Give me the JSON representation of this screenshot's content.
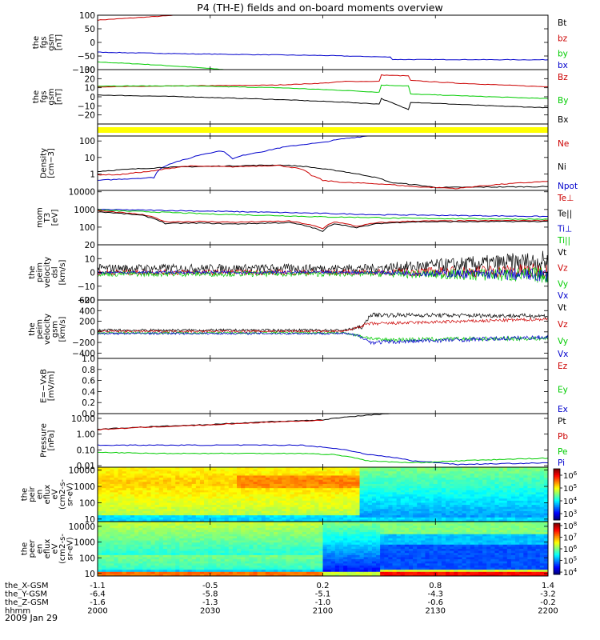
{
  "title": "P4 (TH-E) fields and on-board moments overview",
  "date": "2009 Jan 29",
  "colors": {
    "black": "#000000",
    "red": "#cc0000",
    "green": "#00cc00",
    "blue": "#0000cc",
    "yellow": "#ffff00"
  },
  "xaxis": {
    "tick_positions": [
      2000,
      2030,
      2100,
      2130,
      2200
    ],
    "rows": [
      {
        "label": "the_X-GSM",
        "values": [
          "-1.1",
          "-0.5",
          "0.2",
          "0.8",
          "1.4"
        ]
      },
      {
        "label": "the_Y-GSM",
        "values": [
          "-6.4",
          "-5.8",
          "-5.1",
          "-4.3",
          "-3.2"
        ]
      },
      {
        "label": "the_Z-GSM",
        "values": [
          "-1.6",
          "-1.3",
          "-1.0",
          "-0.6",
          "-0.2"
        ]
      },
      {
        "label": "hhmm",
        "values": [
          "2000",
          "2030",
          "2100",
          "2130",
          "2200"
        ]
      }
    ]
  },
  "chart_data": [
    {
      "id": "fgs-gsm",
      "type": "line",
      "ylabel": [
        "the",
        "fgs",
        "gsm",
        "[nT]"
      ],
      "ylim": [
        -100,
        100
      ],
      "yticks": [
        100,
        50,
        0,
        -50,
        -100
      ],
      "yticklabels": [
        "100",
        "50",
        "0",
        "−50",
        "−100"
      ],
      "legend": [
        {
          "name": "Bt",
          "color": "#000000"
        },
        {
          "name": "bz",
          "color": "#cc0000"
        },
        {
          "name": "by",
          "color": "#00cc00"
        },
        {
          "name": "bx",
          "color": "#0000cc"
        }
      ],
      "series": [
        {
          "name": "bz",
          "color": "#cc0000",
          "x": [
            0,
            35
          ],
          "y": [
            82,
            100
          ]
        },
        {
          "name": "by",
          "color": "#00cc00",
          "x": [
            0,
            20,
            40,
            60
          ],
          "y": [
            -72,
            -80,
            -90,
            -102
          ]
        },
        {
          "name": "bx",
          "color": "#0000cc",
          "x": [
            0,
            40,
            100,
            130,
            131,
            200
          ],
          "y": [
            -36,
            -42,
            -48,
            -54,
            -63,
            -64
          ]
        }
      ]
    },
    {
      "id": "fgs-gsm-zoom",
      "type": "line",
      "ylabel": [
        "the",
        "fgs",
        "gsm",
        "[nT]"
      ],
      "ylim": [
        -30,
        30
      ],
      "yticks": [
        30,
        20,
        10,
        0,
        -10,
        -20
      ],
      "yticklabels": [
        "30",
        "20",
        "10",
        "0",
        "−10",
        "−20"
      ],
      "legend": [
        {
          "name": "Bz",
          "color": "#cc0000"
        },
        {
          "name": "By",
          "color": "#00cc00"
        },
        {
          "name": "Bx",
          "color": "#000000"
        }
      ],
      "series": [
        {
          "name": "Bz",
          "color": "#cc0000",
          "x": [
            0,
            40,
            80,
            100,
            110,
            125,
            126,
            138,
            139,
            160,
            200
          ],
          "y": [
            11,
            12,
            13,
            15,
            17,
            17,
            24,
            23,
            18,
            15,
            11
          ]
        },
        {
          "name": "By",
          "color": "#00cc00",
          "x": [
            0,
            40,
            80,
            110,
            125,
            126,
            138,
            139,
            175,
            200
          ],
          "y": [
            12,
            12,
            10,
            7,
            5,
            13,
            12,
            3,
            0,
            -2
          ]
        },
        {
          "name": "Bx",
          "color": "#000000",
          "x": [
            0,
            40,
            80,
            110,
            125,
            126,
            138,
            139,
            175,
            200
          ],
          "y": [
            2,
            0,
            -3,
            -6,
            -8,
            -2,
            -14,
            -6,
            -10,
            -12
          ]
        }
      ]
    },
    {
      "id": "quality-flag",
      "type": "area",
      "series": [
        {
          "name": "flag",
          "color": "#ffff00",
          "x": [
            0,
            200
          ],
          "y": [
            1,
            1
          ]
        }
      ]
    },
    {
      "id": "density",
      "type": "line",
      "yscale": "log",
      "ylabel": [
        "Density",
        "[cm−3]"
      ],
      "ylim": [
        0.1,
        200
      ],
      "yticks": [
        100,
        10,
        1
      ],
      "yticklabels": [
        "100",
        "10",
        "1"
      ],
      "legend": [
        {
          "name": "Ne",
          "color": "#cc0000"
        },
        {
          "name": "Ni",
          "color": "#000000"
        },
        {
          "name": "Npot",
          "color": "#0000cc"
        }
      ],
      "series": [
        {
          "name": "Npot",
          "color": "#0000cc",
          "x": [
            0,
            25,
            40,
            55,
            60,
            75,
            100,
            120
          ],
          "y": [
            0.4,
            0.6,
            8,
            25,
            8,
            25,
            80,
            200
          ]
        },
        {
          "name": "Ni",
          "color": "#000000",
          "x": [
            0,
            30,
            80,
            90,
            100,
            115,
            130,
            150,
            200
          ],
          "y": [
            1.4,
            2.5,
            3.5,
            3.0,
            2.0,
            1.0,
            0.3,
            0.15,
            0.17
          ]
        },
        {
          "name": "Ne",
          "color": "#cc0000",
          "x": [
            0,
            10,
            25,
            40,
            60,
            80,
            90,
            95,
            100,
            110,
            125,
            140,
            160,
            200
          ],
          "y": [
            0.9,
            0.9,
            1.5,
            3.0,
            2.7,
            3.3,
            2.0,
            0.8,
            0.4,
            0.3,
            0.25,
            0.17,
            0.13,
            0.35
          ]
        }
      ]
    },
    {
      "id": "temperature",
      "type": "line",
      "yscale": "log",
      "ylabel": [
        "mom",
        "T3",
        "[eV]"
      ],
      "ylim": [
        10,
        12000
      ],
      "yticks": [
        10000,
        1000,
        100
      ],
      "yticklabels": [
        "10000",
        "1000",
        "100"
      ],
      "legend": [
        {
          "name": "Te⊥",
          "color": "#cc0000"
        },
        {
          "name": "Te||",
          "color": "#000000"
        },
        {
          "name": "Ti⊥",
          "color": "#0000cc"
        },
        {
          "name": "Ti||",
          "color": "#00cc00"
        }
      ],
      "series": [
        {
          "name": "Ti⊥",
          "color": "#0000cc",
          "x": [
            0,
            50,
            100,
            125,
            130,
            200
          ],
          "y": [
            1000,
            800,
            600,
            500,
            500,
            400
          ]
        },
        {
          "name": "Ti||",
          "color": "#00cc00",
          "x": [
            0,
            50,
            100,
            125,
            130,
            200
          ],
          "y": [
            900,
            550,
            380,
            350,
            320,
            280
          ]
        },
        {
          "name": "Te⊥",
          "color": "#cc0000",
          "x": [
            0,
            20,
            30,
            45,
            60,
            85,
            100,
            105,
            115,
            125,
            140,
            200
          ],
          "y": [
            850,
            500,
            200,
            210,
            190,
            220,
            80,
            200,
            110,
            180,
            220,
            240
          ]
        },
        {
          "name": "Te||",
          "color": "#000000",
          "x": [
            0,
            20,
            30,
            45,
            60,
            85,
            100,
            105,
            115,
            125,
            140,
            200
          ],
          "y": [
            750,
            450,
            160,
            170,
            150,
            180,
            55,
            160,
            90,
            160,
            200,
            210
          ]
        }
      ]
    },
    {
      "id": "velocity-dsl",
      "type": "line",
      "ylabel": [
        "the",
        "peim",
        "velocity",
        "dsl",
        "[km/s]"
      ],
      "ylim": [
        -20,
        20
      ],
      "yticks": [
        20,
        10,
        0,
        -10,
        -20
      ],
      "yticklabels": [
        "20",
        "10",
        "0",
        "−10",
        "−20"
      ],
      "legend": [
        {
          "name": "Vt",
          "color": "#000000"
        },
        {
          "name": "Vz",
          "color": "#cc0000"
        },
        {
          "name": "Vy",
          "color": "#00cc00"
        },
        {
          "name": "Vx",
          "color": "#0000cc"
        }
      ],
      "series": [
        {
          "name": "Vt",
          "color": "#000000",
          "x": [
            0,
            120,
            200
          ],
          "y": [
            3,
            3,
            8
          ],
          "noise": [
            3,
            3,
            8
          ]
        },
        {
          "name": "Vz",
          "color": "#cc0000",
          "x": [
            0,
            120,
            200
          ],
          "y": [
            0,
            0,
            1
          ],
          "noise": [
            2,
            2,
            6
          ]
        },
        {
          "name": "Vy",
          "color": "#00cc00",
          "x": [
            0,
            120,
            200
          ],
          "y": [
            -1,
            -1,
            -2
          ],
          "noise": [
            2,
            2,
            6
          ]
        },
        {
          "name": "Vx",
          "color": "#0000cc",
          "x": [
            0,
            120,
            200
          ],
          "y": [
            0,
            0,
            -2
          ],
          "noise": [
            1,
            1,
            5
          ]
        }
      ]
    },
    {
      "id": "velocity-gsm",
      "type": "line",
      "ylabel": [
        "the",
        "peim",
        "velocity",
        "gsm",
        "[km/s]"
      ],
      "ylim": [
        -500,
        600
      ],
      "yticks": [
        600,
        400,
        200,
        0,
        -200,
        -400
      ],
      "yticklabels": [
        "600",
        "400",
        "200",
        "0",
        "−200",
        "−400"
      ],
      "legend": [
        {
          "name": "Vt",
          "color": "#000000"
        },
        {
          "name": "Vz",
          "color": "#cc0000"
        },
        {
          "name": "Vy",
          "color": "#00cc00"
        },
        {
          "name": "Vx",
          "color": "#0000cc"
        }
      ],
      "series": [
        {
          "name": "Vt",
          "color": "#000000",
          "x": [
            0,
            110,
            118,
            121,
            200
          ],
          "y": [
            30,
            30,
            100,
            320,
            300
          ],
          "noise": [
            25,
            25,
            40,
            40,
            40
          ]
        },
        {
          "name": "Vz",
          "color": "#cc0000",
          "x": [
            0,
            110,
            120,
            200
          ],
          "y": [
            10,
            10,
            150,
            240
          ],
          "noise": [
            20,
            20,
            30,
            30
          ]
        },
        {
          "name": "Vy",
          "color": "#00cc00",
          "x": [
            0,
            110,
            125,
            200
          ],
          "y": [
            -20,
            -20,
            -150,
            -120
          ],
          "noise": [
            20,
            20,
            40,
            40
          ]
        },
        {
          "name": "Vx",
          "color": "#0000cc",
          "x": [
            0,
            110,
            118,
            121,
            200
          ],
          "y": [
            -30,
            -30,
            -100,
            -200,
            -100
          ],
          "noise": [
            20,
            20,
            40,
            40,
            40
          ]
        }
      ]
    },
    {
      "id": "efield",
      "type": "line",
      "ylabel": [
        "E=−VxB",
        "[mV/m]"
      ],
      "ylim": [
        0,
        1
      ],
      "yticks": [
        1.0,
        0.8,
        0.6,
        0.4,
        0.2,
        0.0
      ],
      "yticklabels": [
        "1.0",
        "0.8",
        "0.6",
        "0.4",
        "0.2",
        "0.0"
      ],
      "legend": [
        {
          "name": "Ez",
          "color": "#cc0000"
        },
        {
          "name": "Ey",
          "color": "#00cc00"
        },
        {
          "name": "Ex",
          "color": "#0000cc"
        }
      ],
      "series": []
    },
    {
      "id": "pressure",
      "type": "line",
      "yscale": "log",
      "ylabel": [
        "Pressure",
        "[nPa]"
      ],
      "ylim": [
        0.008,
        20
      ],
      "yticks": [
        10,
        1,
        0.1,
        0.01
      ],
      "yticklabels": [
        "10.00",
        "1.00",
        "0.10",
        "0.01"
      ],
      "legend": [
        {
          "name": "Pt",
          "color": "#000000"
        },
        {
          "name": "Pb",
          "color": "#cc0000"
        },
        {
          "name": "Pe",
          "color": "#00cc00"
        },
        {
          "name": "Pi",
          "color": "#0000cc"
        }
      ],
      "series": [
        {
          "name": "Pt",
          "color": "#000000",
          "x": [
            0,
            50,
            100,
            130
          ],
          "y": [
            2,
            4,
            8,
            20
          ]
        },
        {
          "name": "Pb",
          "color": "#cc0000",
          "x": [
            0,
            50,
            100
          ],
          "y": [
            1.9,
            3.8,
            7.5
          ]
        },
        {
          "name": "Pi",
          "color": "#0000cc",
          "x": [
            0,
            90,
            100,
            120,
            140,
            160,
            200
          ],
          "y": [
            0.2,
            0.2,
            0.15,
            0.05,
            0.02,
            0.012,
            0.015
          ]
        },
        {
          "name": "Pe",
          "color": "#00cc00",
          "x": [
            0,
            25,
            90,
            105,
            120,
            140,
            200
          ],
          "y": [
            0.07,
            0.06,
            0.06,
            0.05,
            0.02,
            0.015,
            0.03
          ]
        }
      ]
    },
    {
      "id": "ion-spectrogram",
      "type": "heatmap",
      "yscale": "log",
      "ylabel": [
        "the",
        "peir",
        "en",
        "eflux",
        "eV",
        "(cm2-s-",
        "sr-eV)"
      ],
      "ylim": [
        7,
        15000
      ],
      "yticks": [
        10000,
        1000,
        100,
        10
      ],
      "yticklabels": [
        "10000",
        "1000",
        "100",
        "10"
      ],
      "colorbar": {
        "min": 2.5,
        "max": 6.5,
        "tick_exponents": [
          6,
          5,
          4,
          3
        ]
      }
    },
    {
      "id": "electron-spectrogram",
      "type": "heatmap",
      "yscale": "log",
      "ylabel": [
        "the",
        "peer",
        "en",
        "eflux",
        "eV",
        "(cm2-s-",
        "sr-eV)"
      ],
      "ylim": [
        7,
        20000
      ],
      "yticks": [
        10000,
        1000,
        100,
        10
      ],
      "yticklabels": [
        "10000",
        "1000",
        "100",
        "10"
      ],
      "colorbar": {
        "min": 3.8,
        "max": 8.2,
        "tick_exponents": [
          8,
          7,
          6,
          5,
          4
        ]
      }
    }
  ]
}
